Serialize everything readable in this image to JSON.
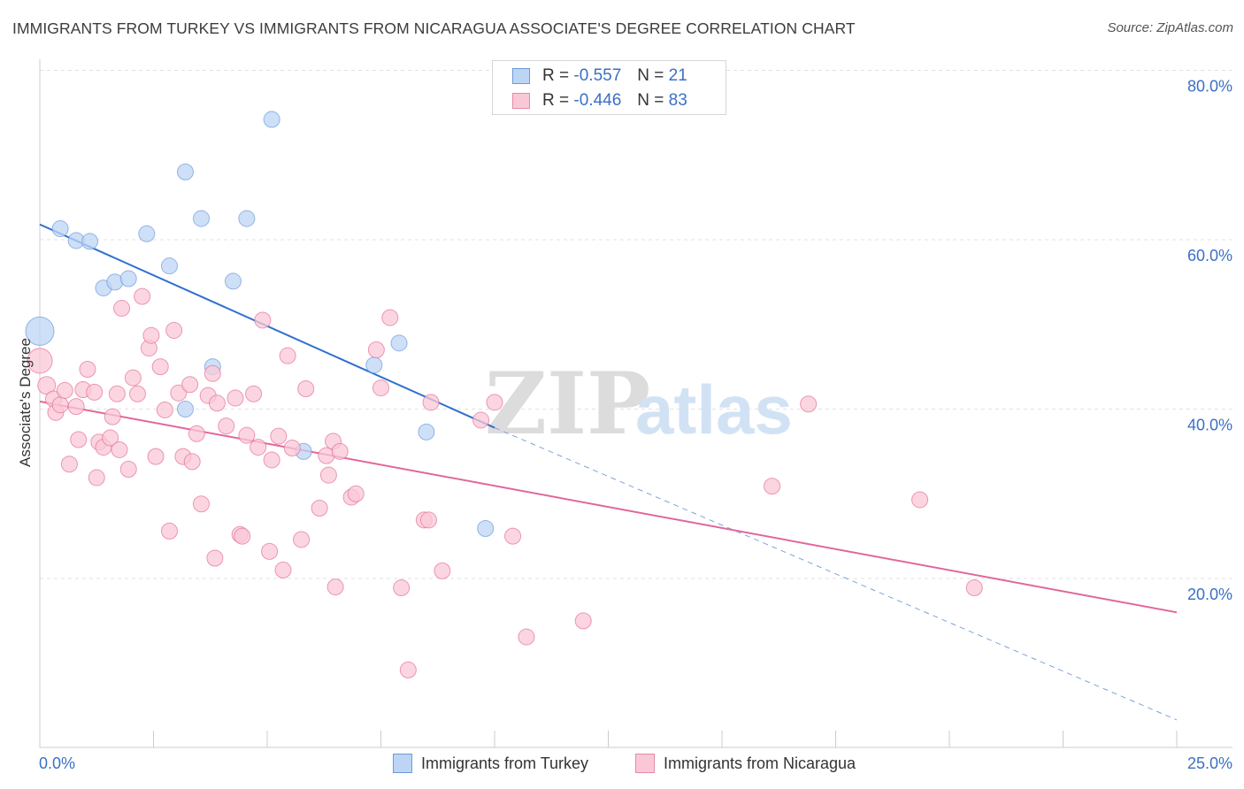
{
  "title": "IMMIGRANTS FROM TURKEY VS IMMIGRANTS FROM NICARAGUA ASSOCIATE'S DEGREE CORRELATION CHART",
  "source": "Source: ZipAtlas.com",
  "watermark": {
    "zip": "ZIP",
    "atlas": "atlas"
  },
  "legend_top": {
    "rows": [
      {
        "r_label": "R =",
        "r_value": "-0.557",
        "n_label": "N =",
        "n_value": "21",
        "fill": "#bdd5f5",
        "stroke": "#6c9ad8"
      },
      {
        "r_label": "R =",
        "r_value": "-0.446",
        "n_label": "N =",
        "n_value": "83",
        "fill": "#f9c8d7",
        "stroke": "#e58aa7"
      }
    ]
  },
  "legend_bottom": [
    {
      "label": "Immigrants from Turkey",
      "fill": "#bdd5f5",
      "stroke": "#6c9ad8"
    },
    {
      "label": "Immigrants from Nicaragua",
      "fill": "#f9c8d7",
      "stroke": "#e58aa7"
    }
  ],
  "chart_data": {
    "type": "scatter",
    "title": "IMMIGRANTS FROM TURKEY VS IMMIGRANTS FROM NICARAGUA ASSOCIATE'S DEGREE CORRELATION CHART",
    "xlabel": "",
    "ylabel": "Associate's Degree",
    "xlim": [
      0,
      25
    ],
    "ylim": [
      0,
      80
    ],
    "x_tick_labels": [
      "0.0%",
      "25.0%"
    ],
    "y_tick_labels": [
      "20.0%",
      "40.0%",
      "60.0%",
      "80.0%"
    ],
    "y_ticks": [
      20,
      40,
      60,
      80
    ],
    "grid": true,
    "legend": "top-center",
    "series": [
      {
        "name": "Immigrants from Turkey",
        "color": "#6c9ad8",
        "fill": "#bdd5f5",
        "points": [
          [
            0.0,
            49.2,
            16
          ],
          [
            0.45,
            61.3,
            9
          ],
          [
            0.8,
            59.9,
            9
          ],
          [
            1.1,
            59.8,
            9
          ],
          [
            1.4,
            54.3,
            9
          ],
          [
            1.65,
            55.0,
            9
          ],
          [
            1.95,
            55.4,
            9
          ],
          [
            2.35,
            60.7,
            9
          ],
          [
            2.85,
            56.9,
            9
          ],
          [
            3.2,
            68.0,
            9
          ],
          [
            3.55,
            62.5,
            9
          ],
          [
            3.8,
            45.0,
            9
          ],
          [
            5.1,
            74.2,
            9
          ],
          [
            4.55,
            62.5,
            9
          ],
          [
            4.25,
            55.1,
            9
          ],
          [
            3.2,
            40.0,
            9
          ],
          [
            5.8,
            35.0,
            9
          ],
          [
            7.35,
            45.2,
            9
          ],
          [
            7.9,
            47.8,
            9
          ],
          [
            8.5,
            37.3,
            9
          ],
          [
            9.8,
            25.9,
            9
          ]
        ],
        "trend": {
          "x0": 0.0,
          "y0": 61.8,
          "x1": 10.0,
          "y1": 37.8
        },
        "trend_extension": {
          "x0": 10.0,
          "y0": 37.8,
          "x1": 25.0,
          "y1": 3.3
        }
      },
      {
        "name": "Immigrants from Nicaragua",
        "color": "#e56f98",
        "fill": "#f9c8d7",
        "points": [
          [
            0.0,
            45.7,
            14
          ],
          [
            0.15,
            42.8,
            10
          ],
          [
            0.3,
            41.2,
            9
          ],
          [
            0.35,
            39.6,
            9
          ],
          [
            0.45,
            40.5,
            9
          ],
          [
            0.55,
            42.2,
            9
          ],
          [
            0.65,
            33.5,
            9
          ],
          [
            0.8,
            40.3,
            9
          ],
          [
            0.85,
            36.4,
            9
          ],
          [
            0.95,
            42.3,
            9
          ],
          [
            1.05,
            44.7,
            9
          ],
          [
            1.2,
            42.0,
            9
          ],
          [
            1.25,
            31.9,
            9
          ],
          [
            1.3,
            36.1,
            9
          ],
          [
            1.4,
            35.5,
            9
          ],
          [
            1.55,
            36.6,
            9
          ],
          [
            1.6,
            39.1,
            9
          ],
          [
            1.7,
            41.8,
            9
          ],
          [
            1.75,
            35.2,
            9
          ],
          [
            1.8,
            51.9,
            9
          ],
          [
            1.95,
            32.9,
            9
          ],
          [
            2.05,
            43.7,
            9
          ],
          [
            2.15,
            41.8,
            9
          ],
          [
            2.25,
            53.3,
            9
          ],
          [
            2.4,
            47.2,
            9
          ],
          [
            2.45,
            48.7,
            9
          ],
          [
            2.55,
            34.4,
            9
          ],
          [
            2.65,
            45.0,
            9
          ],
          [
            2.75,
            39.9,
            9
          ],
          [
            2.85,
            25.6,
            9
          ],
          [
            2.95,
            49.3,
            9
          ],
          [
            3.05,
            41.9,
            9
          ],
          [
            3.15,
            34.4,
            9
          ],
          [
            3.3,
            42.9,
            9
          ],
          [
            3.35,
            33.8,
            9
          ],
          [
            3.45,
            37.1,
            9
          ],
          [
            3.55,
            28.8,
            9
          ],
          [
            3.7,
            41.6,
            9
          ],
          [
            3.8,
            44.2,
            9
          ],
          [
            3.85,
            22.4,
            9
          ],
          [
            3.9,
            40.7,
            9
          ],
          [
            4.1,
            38.0,
            9
          ],
          [
            4.3,
            41.3,
            9
          ],
          [
            4.4,
            25.2,
            9
          ],
          [
            4.45,
            25.0,
            9
          ],
          [
            4.55,
            36.9,
            9
          ],
          [
            4.7,
            41.8,
            9
          ],
          [
            4.8,
            35.5,
            9
          ],
          [
            4.9,
            50.5,
            9
          ],
          [
            5.05,
            23.2,
            9
          ],
          [
            5.1,
            34.0,
            9
          ],
          [
            5.25,
            36.8,
            9
          ],
          [
            5.35,
            21.0,
            9
          ],
          [
            5.45,
            46.3,
            9
          ],
          [
            5.55,
            35.4,
            9
          ],
          [
            5.75,
            24.6,
            9
          ],
          [
            5.85,
            42.4,
            9
          ],
          [
            6.15,
            28.3,
            9
          ],
          [
            6.3,
            34.5,
            9
          ],
          [
            6.35,
            32.2,
            9
          ],
          [
            6.45,
            36.2,
            9
          ],
          [
            6.5,
            19.0,
            9
          ],
          [
            6.6,
            35.0,
            9
          ],
          [
            6.85,
            29.6,
            9
          ],
          [
            6.95,
            30.0,
            9
          ],
          [
            7.4,
            47.0,
            9
          ],
          [
            7.5,
            42.5,
            9
          ],
          [
            7.7,
            50.8,
            9
          ],
          [
            7.95,
            18.9,
            9
          ],
          [
            8.1,
            9.2,
            9
          ],
          [
            8.45,
            26.9,
            9
          ],
          [
            8.55,
            26.9,
            9
          ],
          [
            8.6,
            40.8,
            9
          ],
          [
            8.85,
            20.9,
            9
          ],
          [
            9.7,
            38.7,
            9
          ],
          [
            10.0,
            40.8,
            9
          ],
          [
            10.7,
            13.1,
            9
          ],
          [
            10.4,
            25.0,
            9
          ],
          [
            11.95,
            15.0,
            9
          ],
          [
            16.1,
            30.9,
            9
          ],
          [
            16.9,
            40.6,
            9
          ],
          [
            19.35,
            29.3,
            9
          ],
          [
            20.55,
            18.9,
            9
          ]
        ],
        "trend": {
          "x0": 0.0,
          "y0": 40.9,
          "x1": 25.0,
          "y1": 16.0
        }
      }
    ]
  }
}
